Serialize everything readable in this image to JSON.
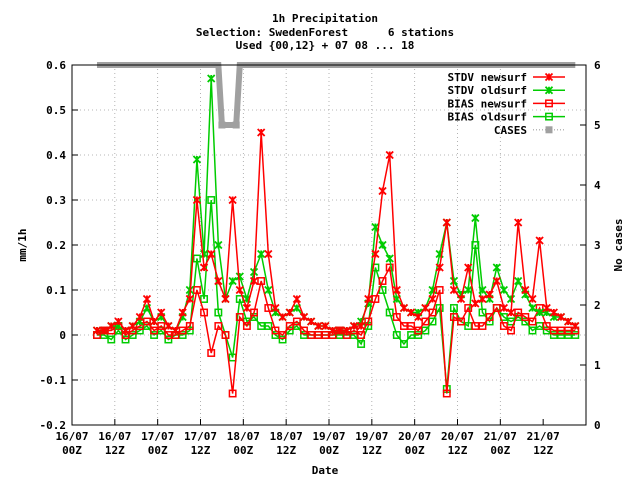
{
  "chart_data": {
    "type": "line",
    "title_lines": [
      "1h Precipitation",
      "Selection: SwedenForest      6 stations",
      "Used {00,12} + 07 08 ... 18"
    ],
    "xlabel": "Date",
    "ylabel": "mm/1h",
    "y2label": "No cases",
    "ylim": [
      -0.2,
      0.6
    ],
    "y2lim": [
      0,
      6
    ],
    "yticks": [
      "-0.2",
      "-0.1",
      "0",
      "0.1",
      "0.2",
      "0.3",
      "0.4",
      "0.5",
      "0.6"
    ],
    "y2ticks": [
      "0",
      "1",
      "2",
      "3",
      "4",
      "5",
      "6"
    ],
    "xticks": [
      {
        "d": "16/07",
        "t": "00Z"
      },
      {
        "d": "16/07",
        "t": "12Z"
      },
      {
        "d": "17/07",
        "t": "00Z"
      },
      {
        "d": "17/07",
        "t": "12Z"
      },
      {
        "d": "18/07",
        "t": "00Z"
      },
      {
        "d": "18/07",
        "t": "12Z"
      },
      {
        "d": "19/07",
        "t": "00Z"
      },
      {
        "d": "19/07",
        "t": "12Z"
      },
      {
        "d": "20/07",
        "t": "00Z"
      },
      {
        "d": "20/07",
        "t": "12Z"
      },
      {
        "d": "21/07",
        "t": "00Z"
      },
      {
        "d": "21/07",
        "t": "12Z"
      }
    ],
    "grid": true,
    "legend_position": "top-right",
    "x_units": "hours since 16/07 00Z",
    "series": [
      {
        "name": "STDV newsurf",
        "color": "#ff0000",
        "marker": "cross",
        "axis": "y1",
        "x": [
          7,
          9,
          11,
          13,
          15,
          17,
          19,
          21,
          23,
          25,
          27,
          29,
          31,
          33,
          35,
          37,
          39,
          41,
          43,
          45,
          47,
          49,
          51,
          53,
          55,
          57,
          59,
          61,
          63,
          65,
          67,
          69,
          71,
          73,
          75,
          77,
          79,
          81,
          83,
          85,
          87,
          89,
          91,
          93,
          95,
          97,
          99,
          101,
          103,
          105,
          107,
          109,
          111,
          113,
          115,
          117,
          119,
          121,
          123,
          125,
          127,
          129,
          131,
          133,
          135,
          137,
          139,
          141
        ],
        "y": [
          0.01,
          0.01,
          0.02,
          0.03,
          0.01,
          0.02,
          0.04,
          0.08,
          0.03,
          0.05,
          0.02,
          0.01,
          0.05,
          0.08,
          0.3,
          0.15,
          0.18,
          0.12,
          0.08,
          0.3,
          0.1,
          0.06,
          0.12,
          0.45,
          0.18,
          0.06,
          0.04,
          0.05,
          0.08,
          0.04,
          0.03,
          0.02,
          0.02,
          0.01,
          0.01,
          0.01,
          0.02,
          0.02,
          0.08,
          0.18,
          0.32,
          0.4,
          0.1,
          0.06,
          0.05,
          0.04,
          0.06,
          0.08,
          0.15,
          0.25,
          0.1,
          0.08,
          0.15,
          0.07,
          0.08,
          0.09,
          0.12,
          0.06,
          0.05,
          0.25,
          0.1,
          0.08,
          0.21,
          0.06,
          0.05,
          0.04,
          0.03,
          0.02
        ]
      },
      {
        "name": "STDV oldsurf",
        "color": "#00cc00",
        "marker": "cross",
        "axis": "y1",
        "x": [
          7,
          9,
          11,
          13,
          15,
          17,
          19,
          21,
          23,
          25,
          27,
          29,
          31,
          33,
          35,
          37,
          39,
          41,
          43,
          45,
          47,
          49,
          51,
          53,
          55,
          57,
          59,
          61,
          63,
          65,
          67,
          69,
          71,
          73,
          75,
          77,
          79,
          81,
          83,
          85,
          87,
          89,
          91,
          93,
          95,
          97,
          99,
          101,
          103,
          105,
          107,
          109,
          111,
          113,
          115,
          117,
          119,
          121,
          123,
          125,
          127,
          129,
          131,
          133,
          135,
          137,
          139,
          141
        ],
        "y": [
          0.01,
          0.01,
          0.02,
          0.02,
          0.01,
          0.02,
          0.03,
          0.06,
          0.03,
          0.04,
          0.02,
          0.01,
          0.04,
          0.1,
          0.39,
          0.18,
          0.57,
          0.2,
          0.08,
          0.12,
          0.13,
          0.08,
          0.14,
          0.18,
          0.1,
          0.05,
          0.04,
          0.05,
          0.06,
          0.04,
          0.03,
          0.02,
          0.02,
          0.01,
          0.01,
          0.01,
          0.02,
          0.03,
          0.07,
          0.24,
          0.2,
          0.17,
          0.08,
          0.06,
          0.05,
          0.05,
          0.06,
          0.1,
          0.18,
          0.25,
          0.12,
          0.09,
          0.1,
          0.26,
          0.1,
          0.08,
          0.15,
          0.1,
          0.08,
          0.12,
          0.09,
          0.06,
          0.05,
          0.05,
          0.04,
          0.04,
          0.03,
          0.02
        ]
      },
      {
        "name": "BIAS newsurf",
        "color": "#ff0000",
        "marker": "square",
        "axis": "y1",
        "x": [
          7,
          9,
          11,
          13,
          15,
          17,
          19,
          21,
          23,
          25,
          27,
          29,
          31,
          33,
          35,
          37,
          39,
          41,
          43,
          45,
          47,
          49,
          51,
          53,
          55,
          57,
          59,
          61,
          63,
          65,
          67,
          69,
          71,
          73,
          75,
          77,
          79,
          81,
          83,
          85,
          87,
          89,
          91,
          93,
          95,
          97,
          99,
          101,
          103,
          105,
          107,
          109,
          111,
          113,
          115,
          117,
          119,
          121,
          123,
          125,
          127,
          129,
          131,
          133,
          135,
          137,
          139,
          141
        ],
        "y": [
          0.0,
          0.01,
          0.01,
          0.02,
          0.0,
          0.01,
          0.02,
          0.03,
          0.01,
          0.02,
          0.0,
          0.0,
          0.01,
          0.02,
          0.1,
          0.05,
          -0.04,
          0.02,
          0.0,
          -0.13,
          0.04,
          0.02,
          0.05,
          0.12,
          0.06,
          0.01,
          0.0,
          0.02,
          0.03,
          0.01,
          0.0,
          0.0,
          0.0,
          0.0,
          0.01,
          0.0,
          0.01,
          0.0,
          0.03,
          0.08,
          0.12,
          0.15,
          0.04,
          0.02,
          0.02,
          0.01,
          0.03,
          0.05,
          0.1,
          -0.13,
          0.04,
          0.03,
          0.06,
          0.02,
          0.02,
          0.04,
          0.06,
          0.02,
          0.01,
          0.05,
          0.04,
          0.03,
          0.06,
          0.02,
          0.01,
          0.01,
          0.01,
          0.01
        ]
      },
      {
        "name": "BIAS oldsurf",
        "color": "#00cc00",
        "marker": "square",
        "axis": "y1",
        "x": [
          7,
          9,
          11,
          13,
          15,
          17,
          19,
          21,
          23,
          25,
          27,
          29,
          31,
          33,
          35,
          37,
          39,
          41,
          43,
          45,
          47,
          49,
          51,
          53,
          55,
          57,
          59,
          61,
          63,
          65,
          67,
          69,
          71,
          73,
          75,
          77,
          79,
          81,
          83,
          85,
          87,
          89,
          91,
          93,
          95,
          97,
          99,
          101,
          103,
          105,
          107,
          109,
          111,
          113,
          115,
          117,
          119,
          121,
          123,
          125,
          127,
          129,
          131,
          133,
          135,
          137,
          139,
          141
        ],
        "y": [
          0.0,
          0.0,
          -0.01,
          0.01,
          -0.01,
          0.0,
          0.01,
          0.02,
          0.0,
          0.01,
          -0.01,
          0.0,
          0.0,
          0.01,
          0.17,
          0.08,
          0.3,
          0.05,
          0.0,
          -0.05,
          0.08,
          0.03,
          0.04,
          0.02,
          0.02,
          0.0,
          -0.01,
          0.01,
          0.02,
          0.0,
          0.0,
          0.0,
          0.0,
          0.0,
          0.0,
          0.0,
          0.0,
          -0.02,
          0.02,
          0.15,
          0.1,
          0.05,
          0.0,
          -0.02,
          0.0,
          0.0,
          0.01,
          0.03,
          0.06,
          -0.12,
          0.06,
          0.03,
          0.02,
          0.2,
          0.05,
          0.03,
          0.06,
          0.04,
          0.03,
          0.04,
          0.03,
          0.01,
          0.02,
          0.01,
          0.0,
          0.0,
          0.0,
          0.0
        ]
      },
      {
        "name": "CASES",
        "color": "#a0a0a0",
        "marker": "square",
        "axis": "y2",
        "x": [
          7,
          41,
          42,
          46,
          47,
          141
        ],
        "y": [
          6,
          6,
          5,
          5,
          6,
          6
        ]
      }
    ]
  }
}
